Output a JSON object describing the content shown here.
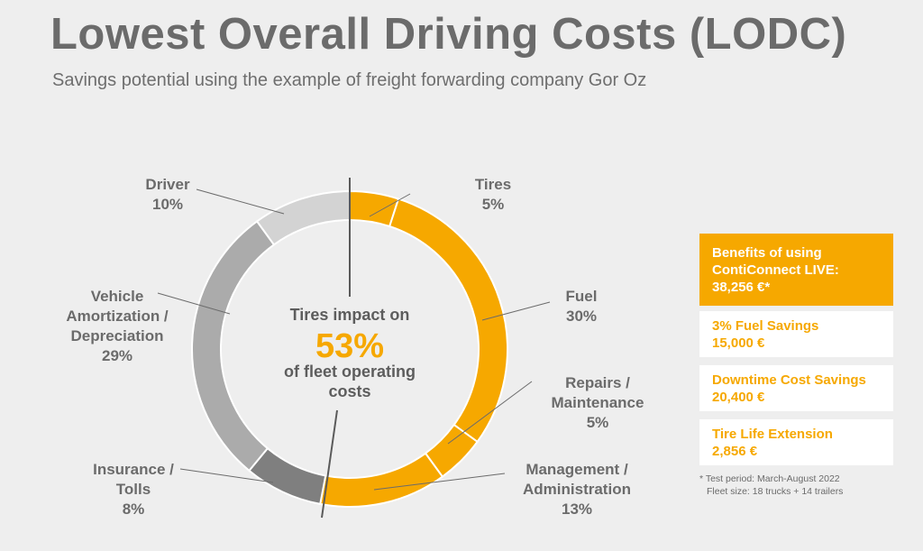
{
  "title": "Lowest Overall Driving Costs (LODC)",
  "subtitle": "Savings potential using the example of freight forwarding company Gor Oz",
  "chart_data": {
    "type": "pie",
    "subtype": "donut",
    "segments": [
      {
        "name": "Tires",
        "label_lines": [
          "Tires",
          "5%"
        ],
        "value": 5,
        "color": "#f6a800"
      },
      {
        "name": "Fuel",
        "label_lines": [
          "Fuel",
          "30%"
        ],
        "value": 30,
        "color": "#f6a800"
      },
      {
        "name": "Repairs / Maintenance",
        "label_lines": [
          "Repairs /",
          "Maintenance",
          "5%"
        ],
        "value": 5,
        "color": "#f6a800"
      },
      {
        "name": "Management / Administration",
        "label_lines": [
          "Management /",
          "Administration",
          "13%"
        ],
        "value": 13,
        "color": "#f6a800"
      },
      {
        "name": "Insurance / Tolls",
        "label_lines": [
          "Insurance /",
          "Tolls",
          "8%"
        ],
        "value": 8,
        "color": "#7f7f7f"
      },
      {
        "name": "Vehicle Amortization / Depreciation",
        "label_lines": [
          "Vehicle",
          "Amortization /",
          "Depreciation",
          "29%"
        ],
        "value": 29,
        "color": "#ababab"
      },
      {
        "name": "Driver",
        "label_lines": [
          "Driver",
          "10%"
        ],
        "value": 10,
        "color": "#d3d3d3"
      }
    ],
    "center": {
      "line1": "Tires impact on",
      "value": "53%",
      "line2": "of fleet operating",
      "line3": "costs"
    }
  },
  "benefits": {
    "main": {
      "line1": "Benefits of using",
      "line2": "ContiConnect LIVE:",
      "line3": "38,256 €*"
    },
    "items": [
      {
        "name": "3% Fuel Savings",
        "value": "15,000 €"
      },
      {
        "name": "Downtime Cost Savings",
        "value": "20,400 €"
      },
      {
        "name": "Tire Life Extension",
        "value": "2,856 €"
      }
    ]
  },
  "footnote": {
    "line1": "* Test period: March-August 2022",
    "line2": "Fleet size: 18 trucks + 14 trailers"
  },
  "colors": {
    "accent": "#f6a800",
    "text": "#6b6b6b",
    "background": "#eeeeee"
  }
}
